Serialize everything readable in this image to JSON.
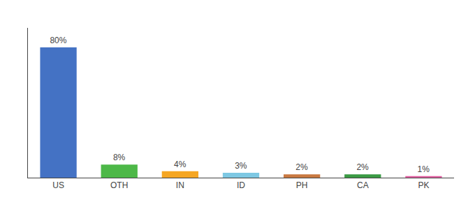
{
  "chart_data": {
    "type": "bar",
    "categories": [
      "US",
      "OTH",
      "IN",
      "ID",
      "PH",
      "CA",
      "PK"
    ],
    "values": [
      80,
      8,
      4,
      3,
      2,
      2,
      1
    ],
    "value_labels": [
      "80%",
      "8%",
      "4%",
      "3%",
      "2%",
      "2%",
      "1%"
    ],
    "colors": [
      "#4472c4",
      "#4db848",
      "#f5a623",
      "#7ec8e3",
      "#c87941",
      "#3a9a44",
      "#e05fa0"
    ],
    "ylim": [
      0,
      92
    ],
    "grid": false,
    "tick_labels": "x"
  }
}
